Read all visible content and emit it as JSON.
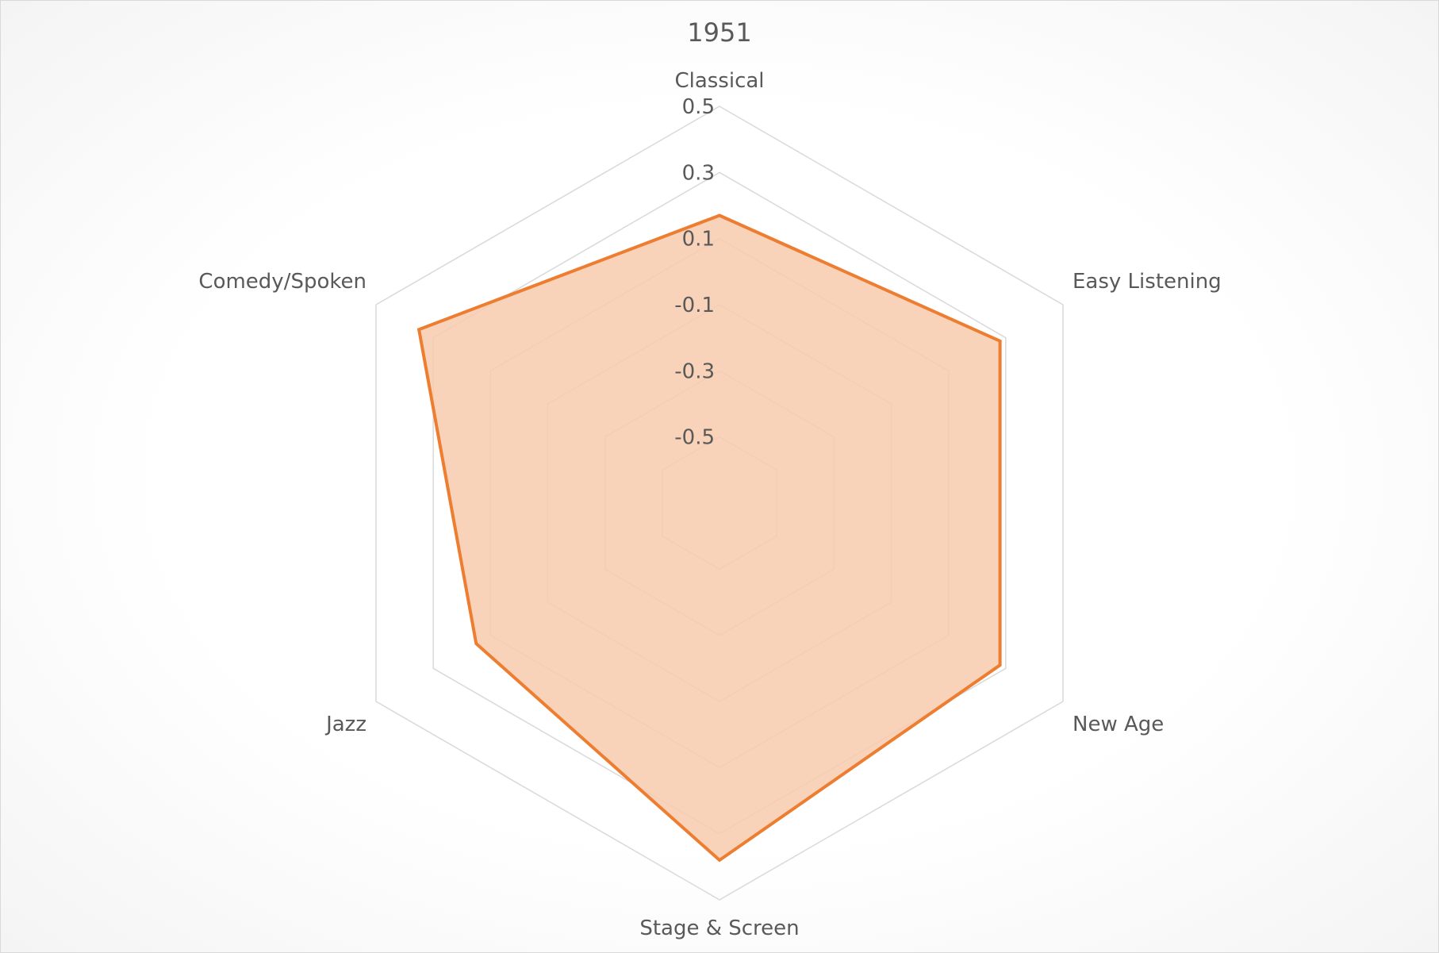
{
  "chart_data": {
    "type": "radar",
    "title": "1951",
    "categories": [
      "Classical",
      "Easy Listening",
      "New Age",
      "Stage & Screen",
      "Jazz",
      "Comedy/Spoken"
    ],
    "series": [
      {
        "values": [
          0.17,
          0.28,
          0.28,
          0.38,
          0.15,
          0.35
        ]
      }
    ],
    "axis": {
      "min": -0.7,
      "max": 0.5,
      "ticks": [
        -0.5,
        -0.3,
        -0.1,
        0.1,
        0.3,
        0.5
      ],
      "tick_labels": [
        "-0.5",
        "-0.3",
        "-0.1",
        "0.1",
        "0.3",
        "0.5"
      ]
    },
    "colors": {
      "series_line": "#ED7D31",
      "series_fill": "#F8CBAD",
      "grid": "#D9D9D9",
      "text": "#595959"
    },
    "grid": true,
    "legend": "none"
  }
}
